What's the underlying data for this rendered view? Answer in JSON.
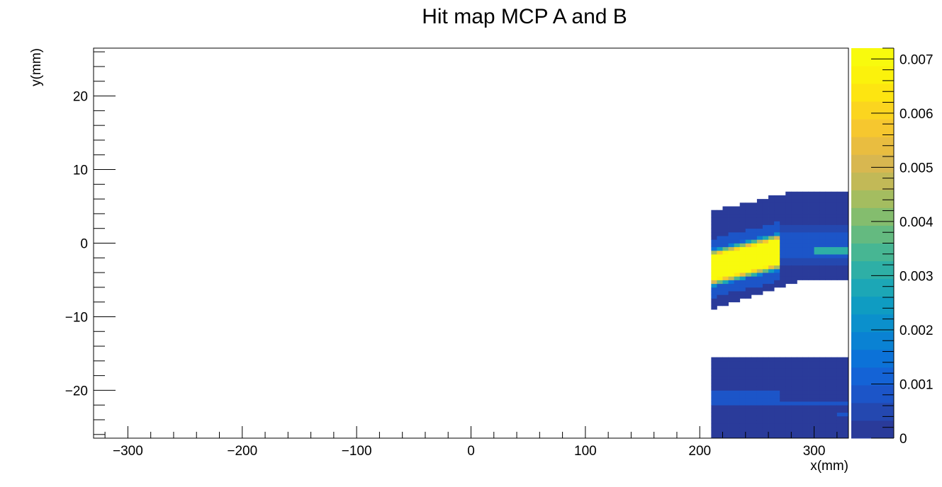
{
  "chart_data": {
    "type": "heatmap",
    "title": "Hit map MCP A and B",
    "xlabel": "x(mm)",
    "ylabel": "y(mm)",
    "xlim": [
      -330,
      330
    ],
    "ylim": [
      -26.5,
      26.5
    ],
    "x_ticks": [
      -300,
      -200,
      -100,
      0,
      100,
      200,
      300
    ],
    "x_tick_labels": [
      "−300",
      "−200",
      "−100",
      "0",
      "100",
      "200",
      "300"
    ],
    "y_ticks": [
      -20,
      -10,
      0,
      10,
      20
    ],
    "y_tick_labels": [
      "−20",
      "−10",
      "0",
      "10",
      "20"
    ],
    "zlim": [
      0,
      0.0072
    ],
    "z_ticks": [
      0,
      0.001,
      0.002,
      0.003,
      0.004,
      0.005,
      0.006,
      0.007
    ],
    "z_tick_labels": [
      "0",
      "0.001",
      "0.002",
      "0.003",
      "0.004",
      "0.005",
      "0.006",
      "0.007"
    ],
    "palette": [
      "#2a3b9a",
      "#2448b0",
      "#1c55c8",
      "#1463d6",
      "#0c72d8",
      "#0a82d3",
      "#0b90cc",
      "#0f9cc2",
      "#1ca7b6",
      "#2eafa6",
      "#47b693",
      "#64ba80",
      "#84bd6e",
      "#a4bd60",
      "#c2b957",
      "#d8b750",
      "#e9bd40",
      "#f6c72f",
      "#fbd51f",
      "#fde511",
      "#fbf20c",
      "#f8fa0d"
    ],
    "regions": [
      {
        "name": "MCP A background",
        "x0": 210,
        "x1": 330,
        "top_y_start": 4.5,
        "top_y_end": 7.0,
        "bottom_y_start": -9.0,
        "bottom_y_end": -5.0,
        "value": 0.0
      },
      {
        "name": "MCP A hot spot",
        "x0": 210,
        "x1": 270,
        "y_center_start": -3.3,
        "y_center_end": -1.0,
        "value": 0.0071
      },
      {
        "name": "MCP A beam band",
        "x0": 270,
        "x1": 330,
        "y_center": -0.3,
        "value": 0.0009
      },
      {
        "name": "MCP A secondary spot",
        "x0": 300,
        "x1": 330,
        "y_center": -0.8,
        "value": 0.003
      },
      {
        "name": "MCP B background",
        "x0": 210,
        "x1": 330,
        "y0": -26.5,
        "y1": -15.5,
        "value": 0.0
      },
      {
        "name": "MCP B band",
        "x0": 210,
        "x1": 270,
        "y0": -22.0,
        "y1": -20.0,
        "value": 0.0008
      }
    ]
  }
}
